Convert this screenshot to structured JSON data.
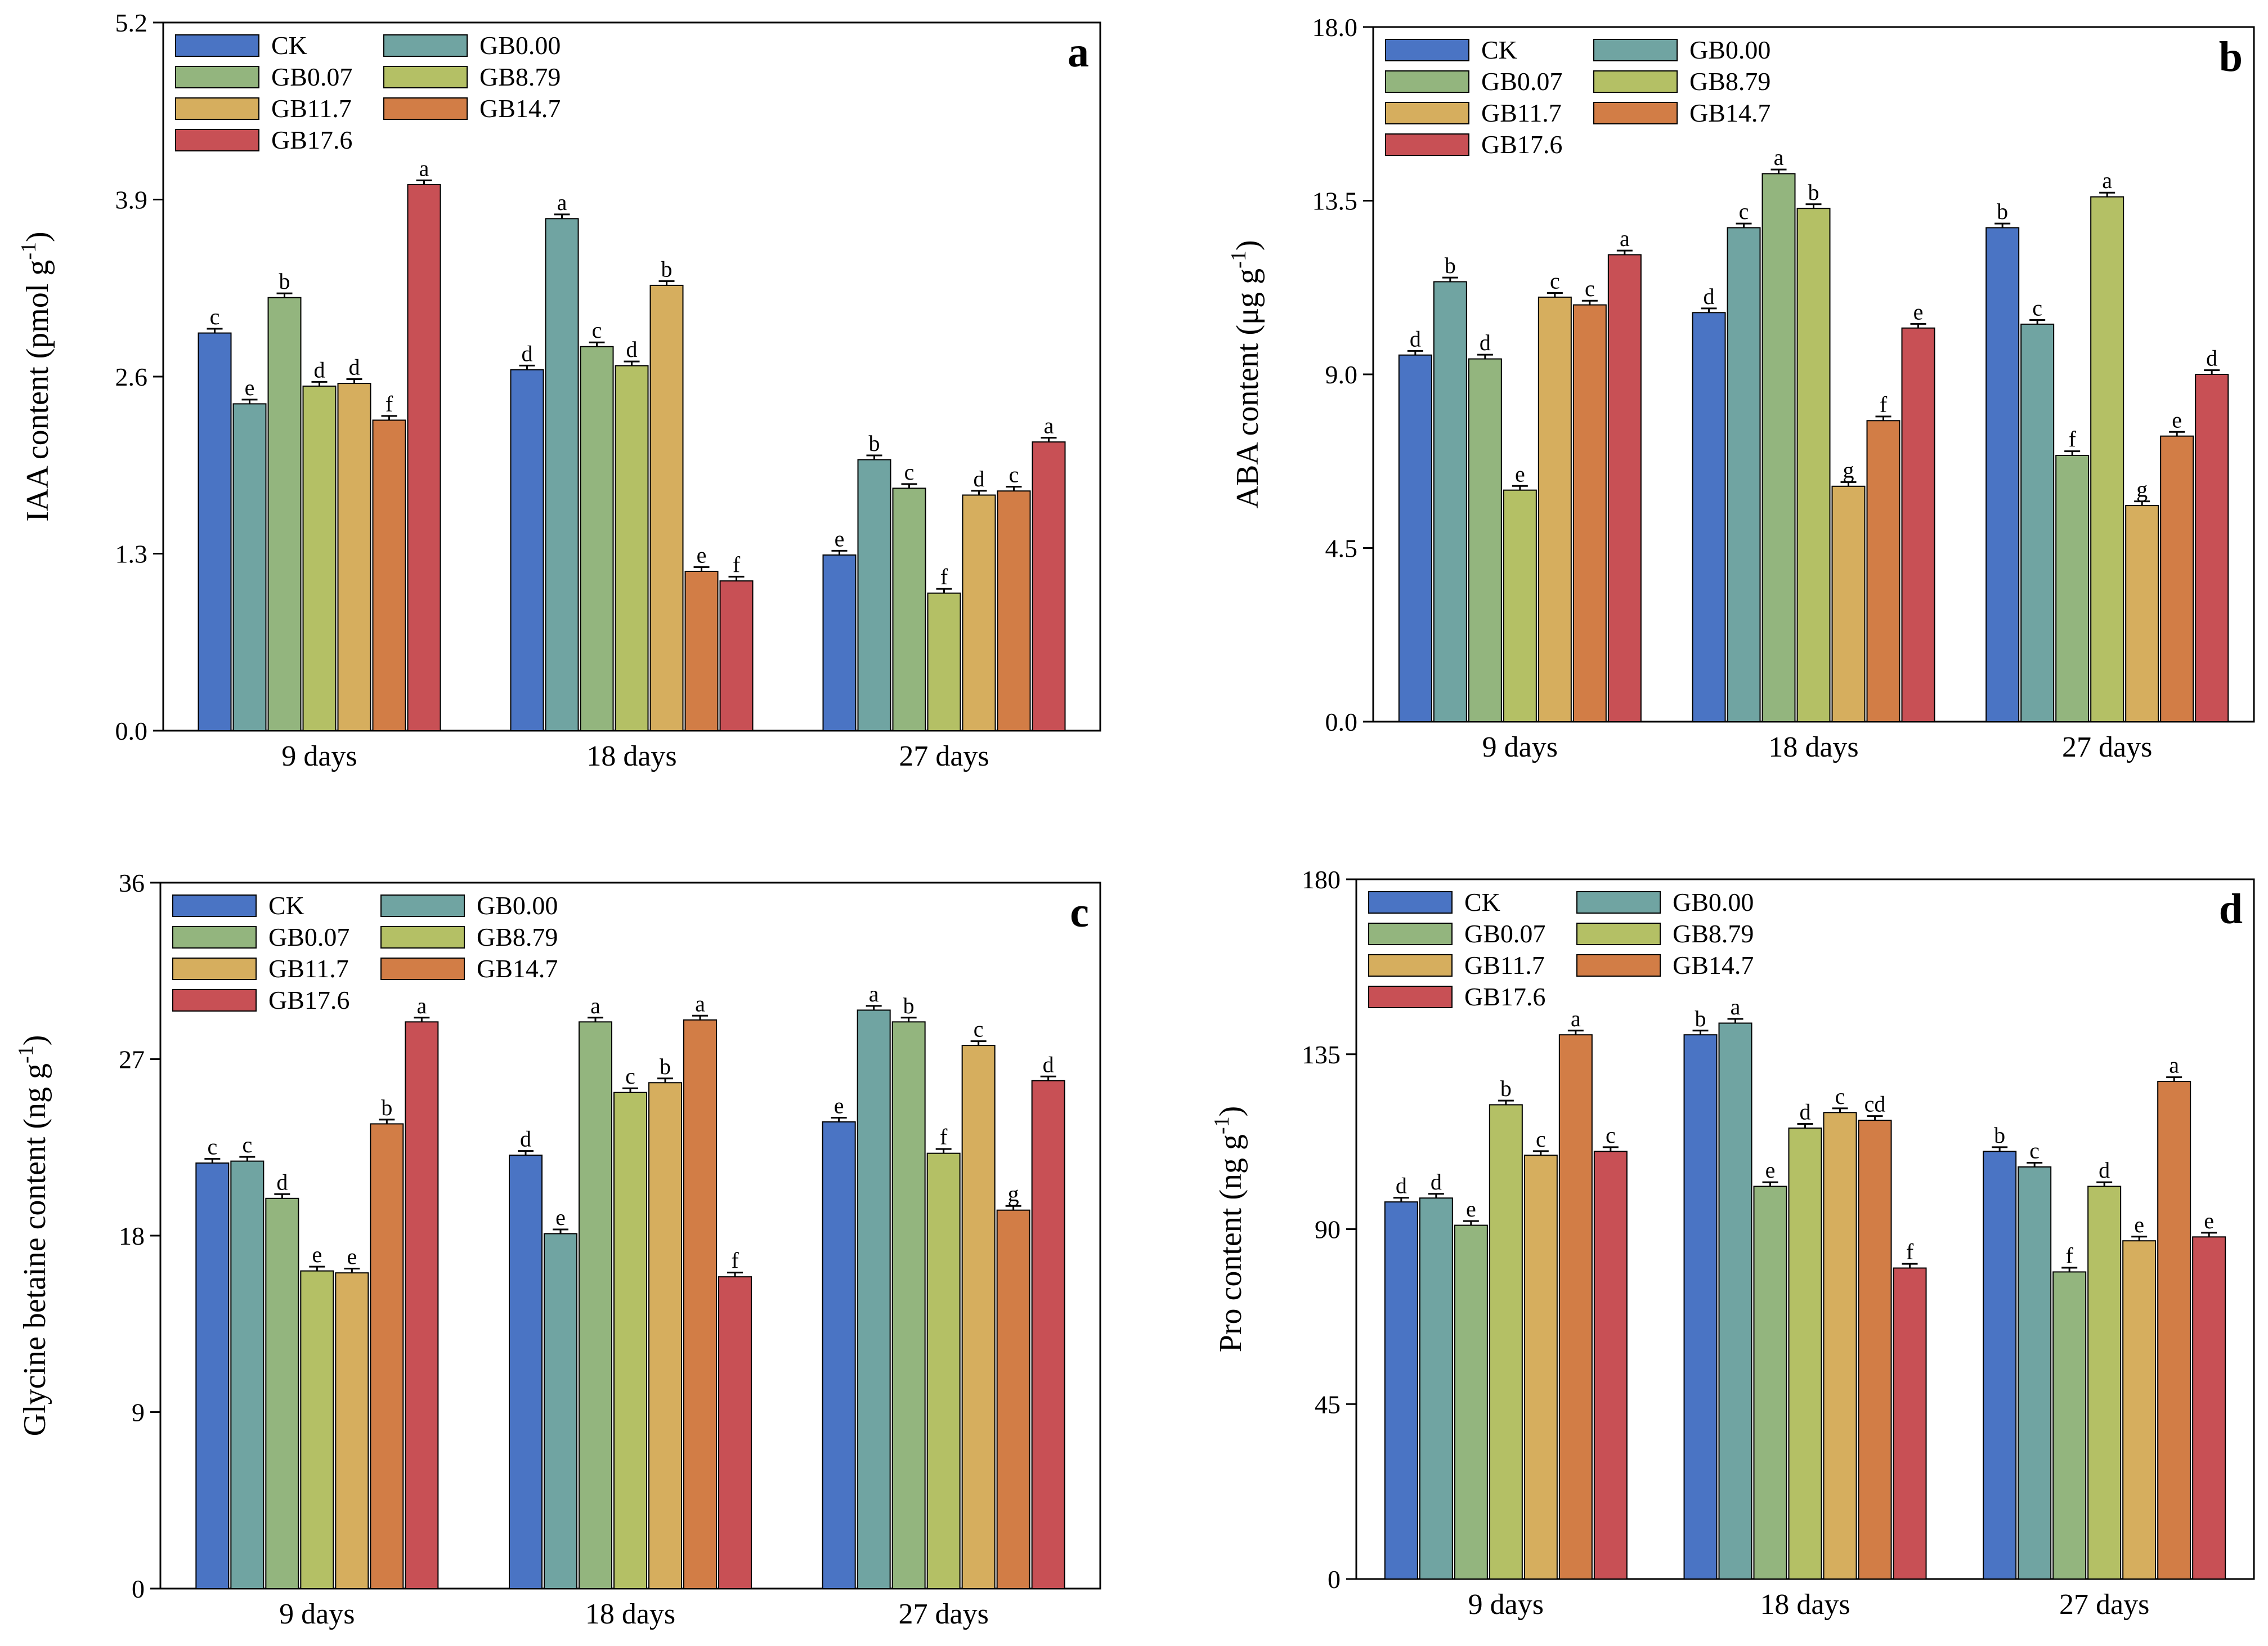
{
  "series_colors": {
    "CK": "#4a74c4",
    "GB0.00": "#70a4a2",
    "GB0.07": "#93b57e",
    "GB8.79": "#b4c065",
    "GB11.7": "#d6ae5e",
    "GB14.7": "#d27d46",
    "GB17.6": "#c85055"
  },
  "chart_data": [
    {
      "type": "bar",
      "panel_label": "a",
      "ylabel": "IAA content (pmol g",
      "ylabel_sup": "-1",
      "ylabel_close": ")",
      "ylim": [
        0,
        5.2
      ],
      "yticks": [
        "0.0",
        "1.3",
        "2.6",
        "3.9",
        "5.2"
      ],
      "categories": [
        "9 days",
        "18 days",
        "27 days"
      ],
      "legend": [
        "CK",
        "GB0.00",
        "GB0.07",
        "GB8.79",
        "GB11.7",
        "GB14.7",
        "GB17.6"
      ],
      "series": [
        {
          "name": "CK",
          "values": [
            2.92,
            2.65,
            1.29
          ],
          "letters": [
            "c",
            "d",
            "e"
          ]
        },
        {
          "name": "GB0.00",
          "values": [
            2.4,
            3.76,
            1.99
          ],
          "letters": [
            "e",
            "a",
            "b"
          ]
        },
        {
          "name": "GB0.07",
          "values": [
            3.18,
            2.82,
            1.78
          ],
          "letters": [
            "b",
            "c",
            "c"
          ]
        },
        {
          "name": "GB8.79",
          "values": [
            2.53,
            2.68,
            1.01
          ],
          "letters": [
            "d",
            "d",
            "f"
          ]
        },
        {
          "name": "GB11.7",
          "values": [
            2.55,
            3.27,
            1.73
          ],
          "letters": [
            "d",
            "b",
            "d"
          ]
        },
        {
          "name": "GB14.7",
          "values": [
            2.28,
            1.17,
            1.76
          ],
          "letters": [
            "f",
            "e",
            "c"
          ]
        },
        {
          "name": "GB17.6",
          "values": [
            4.01,
            1.1,
            2.12
          ],
          "letters": [
            "a",
            "f",
            "a"
          ]
        }
      ]
    },
    {
      "type": "bar",
      "panel_label": "b",
      "ylabel": "ABA content (μg g",
      "ylabel_sup": "-1",
      "ylabel_close": ")",
      "ylim": [
        0,
        18.0
      ],
      "yticks": [
        "0.0",
        "4.5",
        "9.0",
        "13.5",
        "18.0"
      ],
      "categories": [
        "9 days",
        "18 days",
        "27 days"
      ],
      "legend": [
        "CK",
        "GB0.00",
        "GB0.07",
        "GB8.79",
        "GB11.7",
        "GB14.7",
        "GB17.6"
      ],
      "series": [
        {
          "name": "CK",
          "values": [
            9.5,
            10.6,
            12.8
          ],
          "letters": [
            "d",
            "d",
            "b"
          ]
        },
        {
          "name": "GB0.00",
          "values": [
            11.4,
            12.8,
            10.3
          ],
          "letters": [
            "b",
            "c",
            "c"
          ]
        },
        {
          "name": "GB0.07",
          "values": [
            9.4,
            14.2,
            6.9
          ],
          "letters": [
            "d",
            "a",
            "f"
          ]
        },
        {
          "name": "GB8.79",
          "values": [
            6.0,
            13.3,
            13.6
          ],
          "letters": [
            "e",
            "b",
            "a"
          ]
        },
        {
          "name": "GB11.7",
          "values": [
            11.0,
            6.1,
            5.6
          ],
          "letters": [
            "c",
            "g",
            "g"
          ]
        },
        {
          "name": "GB14.7",
          "values": [
            10.8,
            7.8,
            7.4
          ],
          "letters": [
            "c",
            "f",
            "e"
          ]
        },
        {
          "name": "GB17.6",
          "values": [
            12.1,
            10.2,
            9.0
          ],
          "letters": [
            "a",
            "e",
            "d"
          ]
        }
      ]
    },
    {
      "type": "bar",
      "panel_label": "c",
      "ylabel": "Glycine betaine content (ng g",
      "ylabel_sup": "-1",
      "ylabel_close": ")",
      "ylim": [
        0,
        36
      ],
      "yticks": [
        "0",
        "9",
        "18",
        "27",
        "36"
      ],
      "categories": [
        "9 days",
        "18 days",
        "27 days"
      ],
      "legend": [
        "CK",
        "GB0.00",
        "GB0.07",
        "GB8.79",
        "GB11.7",
        "GB14.7",
        "GB17.6"
      ],
      "series": [
        {
          "name": "CK",
          "values": [
            21.7,
            22.1,
            23.8
          ],
          "letters": [
            "c",
            "d",
            "e"
          ]
        },
        {
          "name": "GB0.00",
          "values": [
            21.8,
            18.1,
            29.5
          ],
          "letters": [
            "c",
            "e",
            "a"
          ]
        },
        {
          "name": "GB0.07",
          "values": [
            19.9,
            28.9,
            28.9
          ],
          "letters": [
            "d",
            "a",
            "b"
          ]
        },
        {
          "name": "GB8.79",
          "values": [
            16.2,
            25.3,
            22.2
          ],
          "letters": [
            "e",
            "c",
            "f"
          ]
        },
        {
          "name": "GB11.7",
          "values": [
            16.1,
            25.8,
            27.7
          ],
          "letters": [
            "e",
            "b",
            "c"
          ]
        },
        {
          "name": "GB14.7",
          "values": [
            23.7,
            29.0,
            19.3
          ],
          "letters": [
            "b",
            "a",
            "g"
          ]
        },
        {
          "name": "GB17.6",
          "values": [
            28.9,
            15.9,
            25.9
          ],
          "letters": [
            "a",
            "f",
            "d"
          ]
        }
      ]
    },
    {
      "type": "bar",
      "panel_label": "d",
      "ylabel": "Pro content (ng g",
      "ylabel_sup": "-1",
      "ylabel_close": ")",
      "ylim": [
        0,
        180
      ],
      "yticks": [
        "0",
        "45",
        "90",
        "135",
        "180"
      ],
      "categories": [
        "9 days",
        "18 days",
        "27 days"
      ],
      "legend": [
        "CK",
        "GB0.00",
        "GB0.07",
        "GB8.79",
        "GB11.7",
        "GB14.7",
        "GB17.6"
      ],
      "series": [
        {
          "name": "CK",
          "values": [
            97,
            140,
            110
          ],
          "letters": [
            "d",
            "b",
            "b"
          ]
        },
        {
          "name": "GB0.00",
          "values": [
            98,
            143,
            106
          ],
          "letters": [
            "d",
            "a",
            "c"
          ]
        },
        {
          "name": "GB0.07",
          "values": [
            91,
            101,
            79
          ],
          "letters": [
            "e",
            "e",
            "f"
          ]
        },
        {
          "name": "GB8.79",
          "values": [
            122,
            116,
            101
          ],
          "letters": [
            "b",
            "d",
            "d"
          ]
        },
        {
          "name": "GB11.7",
          "values": [
            109,
            120,
            87
          ],
          "letters": [
            "c",
            "c",
            "e"
          ]
        },
        {
          "name": "GB14.7",
          "values": [
            140,
            118,
            128
          ],
          "letters": [
            "a",
            "cd",
            "a"
          ]
        },
        {
          "name": "GB17.6",
          "values": [
            110,
            80,
            88
          ],
          "letters": [
            "c",
            "f",
            "e"
          ]
        }
      ]
    }
  ]
}
